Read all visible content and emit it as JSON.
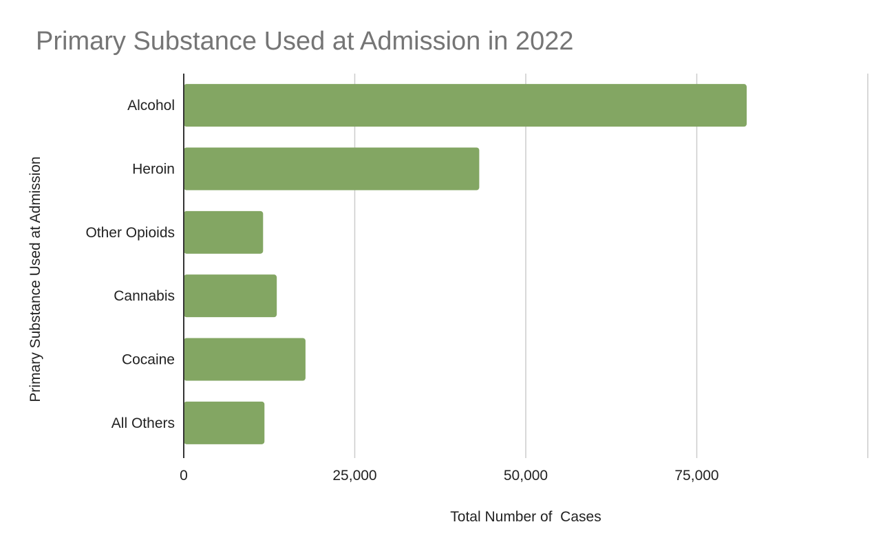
{
  "chart_data": {
    "type": "bar",
    "orientation": "horizontal",
    "title": "Primary Substance Used at Admission in 2022",
    "xlabel": "Total Number of  Cases",
    "ylabel": "Primary Substance Used at Admission",
    "categories": [
      "Alcohol",
      "Heroin",
      "Other Opioids",
      "Cannabis",
      "Cocaine",
      "All Others"
    ],
    "values": [
      82300,
      43200,
      11600,
      13600,
      17800,
      11800
    ],
    "xlim": [
      0,
      100000
    ],
    "x_ticks": [
      0,
      25000,
      50000,
      75000,
      100000
    ],
    "x_tick_labels": [
      "0",
      "25,000",
      "50,000",
      "75,000",
      ""
    ],
    "grid": true,
    "legend": "none",
    "colors": {
      "bar": "#83a663",
      "grid": "#cccccc",
      "axis": "#333333",
      "title": "#757575",
      "text": "#222222"
    }
  }
}
